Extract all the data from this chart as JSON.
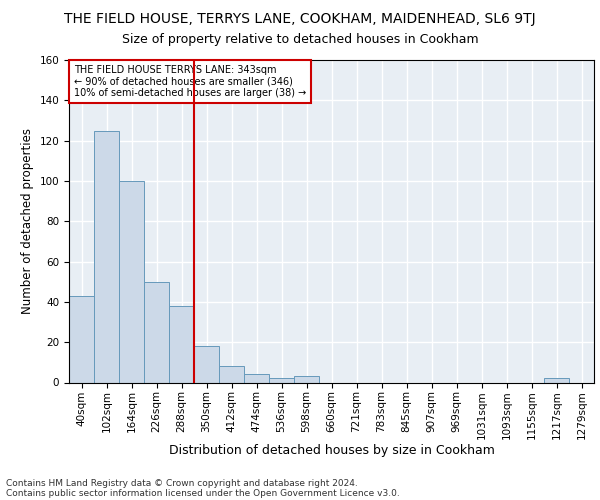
{
  "title": "THE FIELD HOUSE, TERRYS LANE, COOKHAM, MAIDENHEAD, SL6 9TJ",
  "subtitle": "Size of property relative to detached houses in Cookham",
  "xlabel": "Distribution of detached houses by size in Cookham",
  "ylabel": "Number of detached properties",
  "footer_line1": "Contains HM Land Registry data © Crown copyright and database right 2024.",
  "footer_line2": "Contains public sector information licensed under the Open Government Licence v3.0.",
  "categories": [
    "40sqm",
    "102sqm",
    "164sqm",
    "226sqm",
    "288sqm",
    "350sqm",
    "412sqm",
    "474sqm",
    "536sqm",
    "598sqm",
    "660sqm",
    "721sqm",
    "783sqm",
    "845sqm",
    "907sqm",
    "969sqm",
    "1031sqm",
    "1093sqm",
    "1155sqm",
    "1217sqm",
    "1279sqm"
  ],
  "values": [
    43,
    125,
    100,
    50,
    38,
    18,
    8,
    4,
    2,
    3,
    0,
    0,
    0,
    0,
    0,
    0,
    0,
    0,
    0,
    2,
    0
  ],
  "bar_color": "#ccd9e8",
  "bar_edge_color": "#6699bb",
  "reference_line_x": 4.5,
  "reference_line_color": "#cc0000",
  "annotation_text": "THE FIELD HOUSE TERRYS LANE: 343sqm\n← 90% of detached houses are smaller (346)\n10% of semi-detached houses are larger (38) →",
  "annotation_box_color": "#ffffff",
  "annotation_box_edge_color": "#cc0000",
  "ylim": [
    0,
    160
  ],
  "yticks": [
    0,
    20,
    40,
    60,
    80,
    100,
    120,
    140,
    160
  ],
  "background_color": "#e8eef4",
  "grid_color": "#ffffff",
  "title_fontsize": 10,
  "subtitle_fontsize": 9,
  "ylabel_fontsize": 8.5,
  "xlabel_fontsize": 9,
  "tick_fontsize": 7.5,
  "footer_fontsize": 6.5,
  "annotation_fontsize": 7
}
